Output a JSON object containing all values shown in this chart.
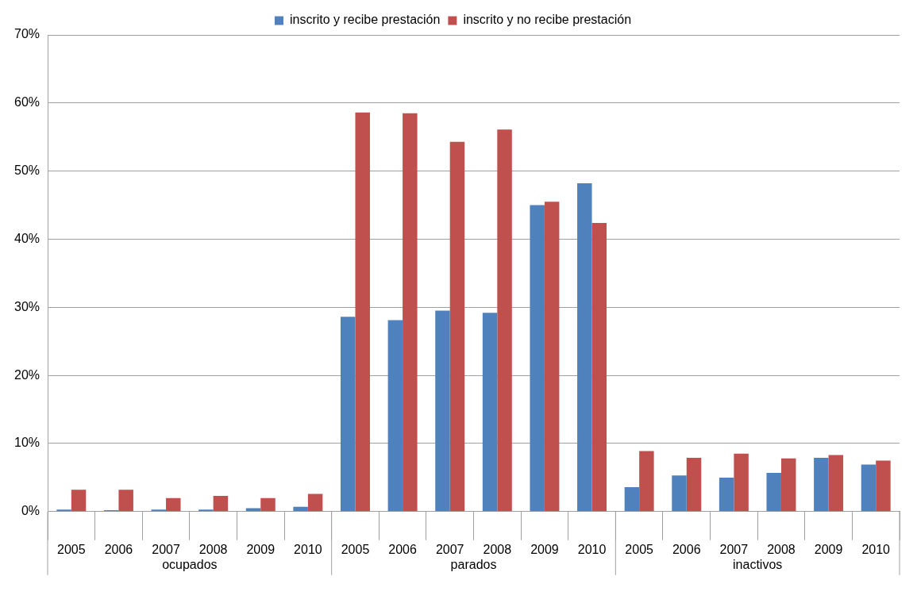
{
  "chart_data": {
    "type": "bar",
    "categories": [
      "2005",
      "2006",
      "2007",
      "2008",
      "2009",
      "2010",
      "2005",
      "2006",
      "2007",
      "2008",
      "2009",
      "2010",
      "2005",
      "2006",
      "2007",
      "2008",
      "2009",
      "2010"
    ],
    "series": [
      {
        "name": "inscrito y recibe prestación",
        "color": "#4f81bd",
        "values": [
          0.3,
          0.2,
          0.3,
          0.3,
          0.5,
          0.7,
          28.6,
          28.1,
          29.5,
          29.2,
          45.0,
          48.2,
          3.6,
          5.3,
          5.0,
          5.7,
          7.9,
          6.9
        ]
      },
      {
        "name": "inscrito y no recibe prestación",
        "color": "#c0504d",
        "values": [
          3.2,
          3.2,
          2.0,
          2.3,
          2.0,
          2.6,
          58.6,
          58.5,
          54.3,
          56.1,
          45.5,
          42.4,
          8.9,
          7.9,
          8.5,
          7.8,
          8.3,
          7.5
        ]
      }
    ],
    "ylim": [
      0,
      70
    ],
    "yticks": [
      {
        "value": 0,
        "label": "0%"
      },
      {
        "value": 10,
        "label": "10%"
      },
      {
        "value": 20,
        "label": "20%"
      },
      {
        "value": 30,
        "label": "30%"
      },
      {
        "value": 40,
        "label": "40%"
      },
      {
        "value": 50,
        "label": "50%"
      },
      {
        "value": 60,
        "label": "60%"
      },
      {
        "value": 70,
        "label": "70%"
      }
    ],
    "annotations": [
      "ocupados",
      "parados",
      "inactivos"
    ],
    "grid": "y",
    "legend": "top"
  }
}
